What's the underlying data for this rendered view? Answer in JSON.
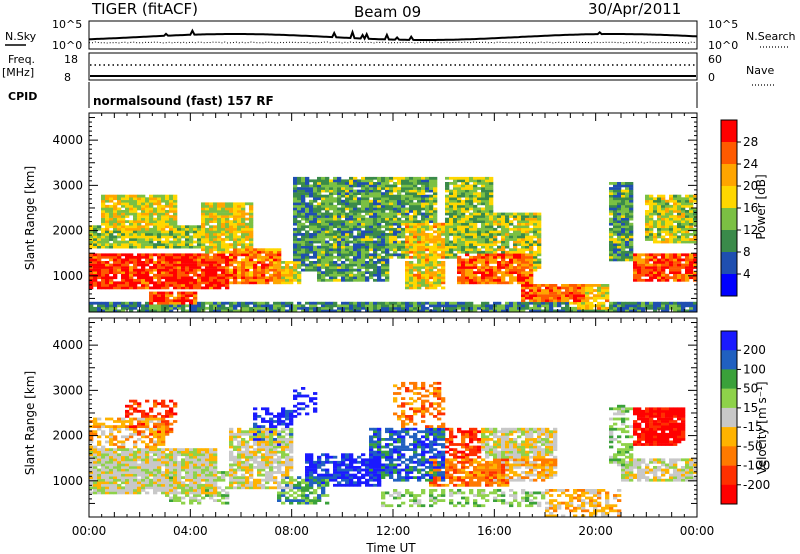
{
  "header": {
    "title": "TIGER (fitACF)",
    "beam": "Beam 09",
    "date": "30/Apr/2011"
  },
  "noise_panel": {
    "left_label": "N.Sky",
    "right_label": "N.Search",
    "left_ticks": [
      "10^5",
      "10^0"
    ],
    "right_ticks": [
      "10^5",
      "10^0"
    ]
  },
  "freq_panel": {
    "left_label_line1": "Freq.",
    "left_label_line2": "[MHz]",
    "right_label": "Nave",
    "left_ticks": [
      "18",
      "8"
    ],
    "right_ticks": [
      "60",
      "0"
    ]
  },
  "cpid_panel": {
    "label": "CPID",
    "text": "normalsound (fast) 157 RF"
  },
  "x_axis": {
    "label": "Time UT",
    "ticks": [
      "00:00",
      "04:00",
      "08:00",
      "12:00",
      "16:00",
      "20:00",
      "00:00"
    ]
  },
  "chart_data": [
    {
      "type": "heatmap",
      "name": "power",
      "ylabel": "Slant Range [km]",
      "yticks": [
        "4000",
        "3000",
        "2000",
        "1000"
      ],
      "ylim": [
        200,
        4600
      ],
      "xlim": [
        0,
        24
      ],
      "colorbar_label": "Power [dB]",
      "colorbar_ticks": [
        "28",
        "24",
        "20",
        "16",
        "12",
        "8",
        "4"
      ],
      "colors": [
        "#0000ff",
        "#1f4fb0",
        "#3a8a4a",
        "#7bc043",
        "#ffd700",
        "#ffa500",
        "#ff5a00",
        "#ff0000"
      ]
    },
    {
      "type": "heatmap",
      "name": "velocity",
      "ylabel": "Slant Range [km]",
      "yticks": [
        "4000",
        "3000",
        "2000",
        "1000"
      ],
      "ylim": [
        200,
        4600
      ],
      "xlim": [
        0,
        24
      ],
      "colorbar_label": "Velocity [m s⁻¹]",
      "colorbar_ticks": [
        "200",
        "100",
        "50",
        "15",
        "-15",
        "-50",
        "-100",
        "-200"
      ],
      "colors": [
        "#1a1aff",
        "#2060c0",
        "#3aa13a",
        "#8ed24a",
        "#c8c8c8",
        "#ffb300",
        "#ff7a00",
        "#ff3000",
        "#ff0000"
      ]
    }
  ]
}
